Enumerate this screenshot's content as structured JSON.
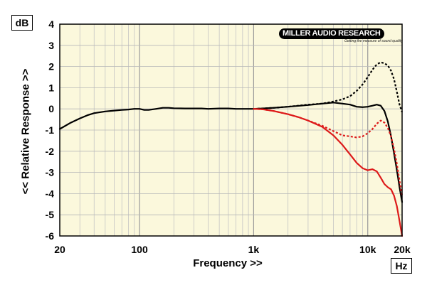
{
  "chart_data": {
    "type": "line",
    "title": "",
    "xlabel": "Frequency >>",
    "ylabel": "<< Relative Response >>",
    "x_unit": "Hz",
    "y_unit": "dB",
    "x_scale": "log",
    "xlim": [
      20,
      20000
    ],
    "ylim": [
      -6,
      4
    ],
    "x_ticks": [
      {
        "value": 20,
        "label": "20"
      },
      {
        "value": 100,
        "label": "100"
      },
      {
        "value": 1000,
        "label": "1k"
      },
      {
        "value": 10000,
        "label": "10k"
      },
      {
        "value": 20000,
        "label": "20k"
      }
    ],
    "y_ticks": [
      {
        "value": 4,
        "label": "4"
      },
      {
        "value": 3,
        "label": "3"
      },
      {
        "value": 2,
        "label": "2"
      },
      {
        "value": 1,
        "label": "1"
      },
      {
        "value": 0,
        "label": "0"
      },
      {
        "value": -1,
        "label": "-1"
      },
      {
        "value": -2,
        "label": "-2"
      },
      {
        "value": -3,
        "label": "-3"
      },
      {
        "value": -4,
        "label": "-4"
      },
      {
        "value": -5,
        "label": "-5"
      },
      {
        "value": -6,
        "label": "-6"
      }
    ],
    "grid": true,
    "background": "#fbf8dc",
    "series": [
      {
        "color": "#000000",
        "dash": "solid",
        "x": [
          20,
          25,
          30,
          35,
          40,
          50,
          60,
          70,
          80,
          90,
          100,
          110,
          120,
          140,
          160,
          180,
          200,
          250,
          300,
          350,
          400,
          500,
          600,
          700,
          800,
          1000,
          1200,
          1500,
          2000,
          3000,
          4000,
          5000,
          6000,
          7000,
          8000,
          9000,
          10000,
          11000,
          12000,
          13000,
          14000,
          15000,
          16000,
          17000,
          18000,
          19000,
          20000
        ],
        "y": [
          -0.95,
          -0.65,
          -0.45,
          -0.3,
          -0.2,
          -0.12,
          -0.08,
          -0.05,
          -0.03,
          0.0,
          0.0,
          -0.05,
          -0.05,
          0.0,
          0.05,
          0.05,
          0.03,
          0.02,
          0.02,
          0.02,
          0.0,
          0.02,
          0.02,
          0.0,
          0.0,
          0.0,
          0.02,
          0.05,
          0.1,
          0.18,
          0.25,
          0.3,
          0.25,
          0.2,
          0.1,
          0.08,
          0.1,
          0.15,
          0.2,
          0.15,
          -0.1,
          -0.6,
          -1.3,
          -2.1,
          -2.9,
          -3.7,
          -4.4
        ]
      },
      {
        "color": "#000000",
        "dash": "dotted",
        "x": [
          1000,
          1500,
          2000,
          3000,
          4000,
          5000,
          6000,
          7000,
          8000,
          9000,
          10000,
          11000,
          12000,
          13000,
          14000,
          15000,
          16000,
          17000,
          18000,
          19000,
          20000
        ],
        "y": [
          0.0,
          0.05,
          0.1,
          0.2,
          0.25,
          0.35,
          0.45,
          0.6,
          0.85,
          1.15,
          1.5,
          1.85,
          2.1,
          2.2,
          2.15,
          2.05,
          1.8,
          1.4,
          0.8,
          0.2,
          -0.15
        ]
      },
      {
        "color": "#dd1a1a",
        "dash": "dotted",
        "x": [
          1000,
          1200,
          1500,
          2000,
          2500,
          3000,
          4000,
          5000,
          6000,
          7000,
          8000,
          9000,
          10000,
          11000,
          12000,
          13000,
          14000,
          15000,
          16000,
          17000,
          18000,
          19000,
          20000
        ],
        "y": [
          0.0,
          -0.02,
          -0.1,
          -0.25,
          -0.4,
          -0.55,
          -0.8,
          -1.05,
          -1.25,
          -1.3,
          -1.35,
          -1.3,
          -1.15,
          -0.95,
          -0.7,
          -0.55,
          -0.65,
          -0.9,
          -1.3,
          -1.9,
          -2.6,
          -3.4,
          -4.1
        ]
      },
      {
        "color": "#dd1a1a",
        "dash": "solid",
        "x": [
          1000,
          1200,
          1500,
          2000,
          2500,
          3000,
          4000,
          5000,
          6000,
          7000,
          8000,
          9000,
          10000,
          11000,
          12000,
          13000,
          14000,
          15000,
          16000,
          17000,
          18000,
          19000,
          20000
        ],
        "y": [
          0.0,
          -0.02,
          -0.1,
          -0.25,
          -0.4,
          -0.55,
          -0.85,
          -1.25,
          -1.7,
          -2.15,
          -2.55,
          -2.8,
          -2.9,
          -2.85,
          -2.95,
          -3.25,
          -3.55,
          -3.7,
          -3.8,
          -4.1,
          -4.6,
          -5.3,
          -6.0
        ]
      }
    ]
  },
  "logo": {
    "brand": "MILLER AUDIO RESEARCH",
    "tagline": "Getting the measure of sound quality"
  }
}
